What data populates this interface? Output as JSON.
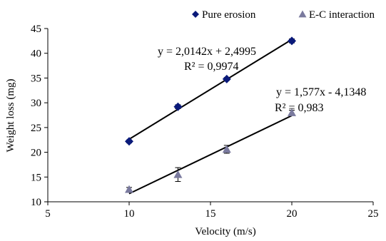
{
  "chart_data": {
    "type": "scatter",
    "xlabel": "Velocity (m/s)",
    "ylabel": "Weight loss (mg)",
    "xlim": [
      5,
      25
    ],
    "ylim": [
      10,
      45
    ],
    "xticks": [
      "5",
      "10",
      "15",
      "20",
      "25"
    ],
    "yticks": [
      "10",
      "15",
      "20",
      "25",
      "30",
      "35",
      "40",
      "45"
    ],
    "grid": false,
    "legend_position": "top-right",
    "series": [
      {
        "name": "Pure erosion",
        "marker": "diamond",
        "color": "#0a1a7a",
        "x": [
          10,
          13,
          16,
          20
        ],
        "y": [
          22.2,
          29.2,
          34.8,
          42.5
        ],
        "error": [
          0.3,
          0.4,
          0.3,
          0.4
        ],
        "trendline": {
          "slope": 2.0142,
          "intercept": 2.4995
        },
        "equation": "y = 2,0142x + 2,4995",
        "r2": "R² = 0,9974"
      },
      {
        "name": "E-C interaction",
        "marker": "triangle",
        "color": "#7a7a9e",
        "x": [
          10,
          13,
          16,
          20
        ],
        "y": [
          12.5,
          15.5,
          20.6,
          28.0
        ],
        "error": [
          0.4,
          1.4,
          0.8,
          0.5
        ],
        "trendline": {
          "slope": 1.577,
          "intercept": -4.1348
        },
        "equation": "y = 1,577x - 4,1348",
        "r2": "R² = 0,983"
      }
    ]
  }
}
